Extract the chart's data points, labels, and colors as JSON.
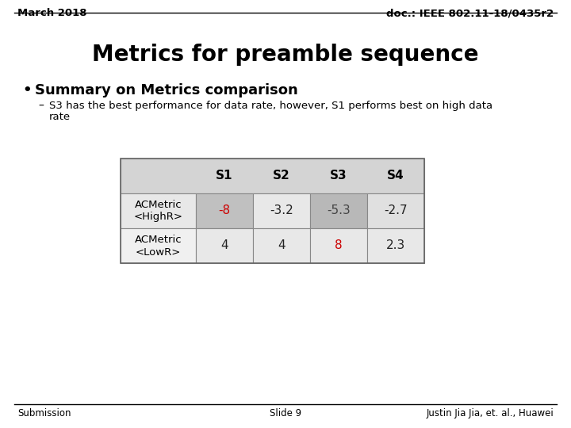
{
  "top_left": "March 2018",
  "top_right": "doc.: IEEE 802.11-18/0435r2",
  "main_title": "Metrics for preamble sequence",
  "bullet_title": "Summary on Metrics comparison",
  "bullet_sub_line1": "S3 has the best performance for data rate, however, S1 performs best on high data",
  "bullet_sub_line2": "rate",
  "table_headers": [
    "S1",
    "S2",
    "S3",
    "S4"
  ],
  "table_row1_label": "ACMetric\n<HighR>",
  "table_row2_label": "ACMetric\n<LowR>",
  "table_row1_values": [
    "-8",
    "-3.2",
    "-5.3",
    "-2.7"
  ],
  "table_row2_values": [
    "4",
    "4",
    "8",
    "2.3"
  ],
  "row1_colors": [
    "#cc0000",
    "#222222",
    "#444444",
    "#222222"
  ],
  "row2_colors": [
    "#222222",
    "#222222",
    "#cc0000",
    "#222222"
  ],
  "header_bg": "#cccccc",
  "row1_label_bg": "#e8e8e8",
  "row2_label_bg": "#f0f0f0",
  "row1_cell_bgs": [
    "#c0c0c0",
    "#e8e8e8",
    "#b8b8b8",
    "#e0e0e0"
  ],
  "row2_cell_bgs": [
    "#e8e8e8",
    "#e8e8e8",
    "#e8e8e8",
    "#e8e8e8"
  ],
  "footer_left": "Submission",
  "footer_center": "Slide 9",
  "footer_right": "Justin Jia Jia, et. al., Huawei",
  "bg_color": "#ffffff",
  "header_full_bg": "#d4d4d4",
  "header_label_bg": "#d4d4d4"
}
